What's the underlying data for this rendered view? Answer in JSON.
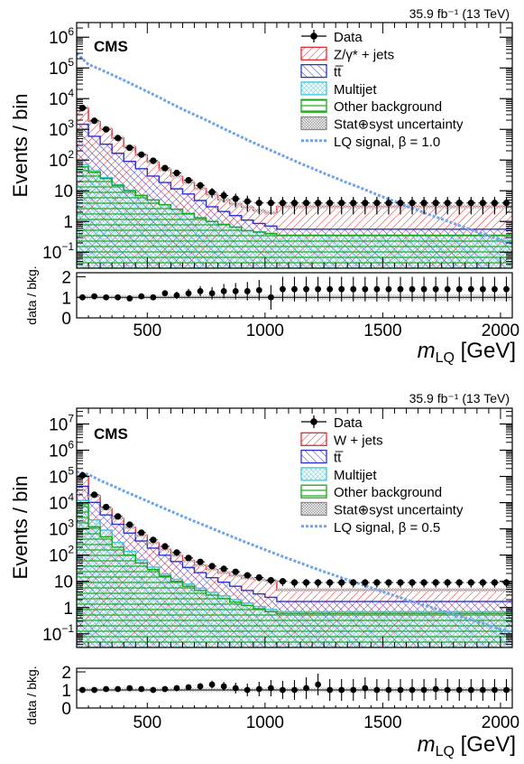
{
  "chart_data": [
    {
      "type": "histogram",
      "lumi_label": "35.9 fb⁻¹ (13 TeV)",
      "experiment_label": "CMS",
      "ylabel": "Events / bin",
      "ratio_ylabel": "data / bkg.",
      "xlabel_main": "m",
      "xlabel_sub": "LQ",
      "xlabel_unit": " [GeV]",
      "xlim": [
        200,
        2050
      ],
      "ylim_log": [
        0.03,
        3000000
      ],
      "y_ticks": [
        {
          "v": 0.1,
          "m": "10",
          "e": "−1"
        },
        {
          "v": 1,
          "m": "1",
          "e": ""
        },
        {
          "v": 10,
          "m": "10",
          "e": ""
        },
        {
          "v": 100,
          "m": "10",
          "e": "2"
        },
        {
          "v": 1000,
          "m": "10",
          "e": "3"
        },
        {
          "v": 10000,
          "m": "10",
          "e": "4"
        },
        {
          "v": 100000,
          "m": "10",
          "e": "5"
        },
        {
          "v": 1000000,
          "m": "10",
          "e": "6"
        }
      ],
      "x_tick_labels": [
        "500",
        "1000",
        "1500",
        "2000"
      ],
      "ratio_ylim": [
        0,
        2.2
      ],
      "ratio_tick_labels": [
        "0",
        "1",
        "2"
      ],
      "legend": [
        "Data",
        "Z/γ* + jets",
        "tt̅",
        "Multijet",
        "Other background",
        "Stat⊕syst uncertainty",
        "LQ signal, β = 1.0"
      ],
      "bin_edges": [
        200,
        250,
        300,
        350,
        400,
        450,
        500,
        550,
        600,
        650,
        700,
        750,
        800,
        850,
        900,
        950,
        1000,
        1050,
        2050
      ],
      "series": {
        "other": [
          60,
          40,
          25,
          15,
          10,
          7,
          5,
          3.5,
          2.5,
          1.8,
          1.3,
          1.0,
          0.8,
          0.65,
          0.5,
          0.45,
          0.4,
          0.35
        ],
        "multijet": [
          12,
          5,
          2,
          0.8,
          0.3,
          0.12,
          0.06,
          0.04,
          0.03,
          0.02,
          0.02,
          0.01,
          0.01,
          0.01,
          0.01,
          0.01,
          0.01,
          0.01
        ],
        "ttbar": [
          1400,
          550,
          300,
          150,
          80,
          45,
          25,
          15,
          9,
          6,
          3.5,
          2,
          1.3,
          0.9,
          0.6,
          0.4,
          0.3,
          0.2
        ],
        "zjets": [
          3500,
          1200,
          700,
          350,
          180,
          95,
          55,
          30,
          18,
          11,
          7,
          4.5,
          3,
          2.2,
          1.8,
          1.4,
          1.2,
          2.5
        ]
      },
      "data_x": [
        225,
        275,
        325,
        375,
        425,
        475,
        525,
        575,
        625,
        675,
        725,
        775,
        825,
        875,
        925,
        975,
        1025,
        1075,
        1125,
        1175,
        1225,
        1275,
        1325,
        1375,
        1425,
        1475,
        1525,
        1575,
        1625,
        1675,
        1725,
        1775,
        1825,
        1875,
        1925,
        1975,
        2025
      ],
      "data_y": [
        5000,
        1900,
        1000,
        520,
        250,
        150,
        95,
        55,
        38,
        22,
        15,
        9,
        7,
        5.5,
        4.5,
        4,
        4,
        4,
        4,
        4,
        4,
        4,
        4,
        4,
        4,
        4,
        4,
        4,
        4,
        4,
        4,
        4,
        4,
        4,
        4,
        4,
        4
      ],
      "signal_x": [
        200,
        250,
        300,
        350,
        400,
        450,
        500,
        550,
        600,
        650,
        700,
        750,
        800,
        850,
        900,
        950,
        1000,
        1050,
        1100,
        1150,
        1200,
        1250,
        1300,
        1350,
        1400,
        1450,
        1500,
        1550,
        1600,
        1650,
        1700,
        1750,
        1800,
        1850,
        1900,
        1950,
        2000,
        2050
      ],
      "signal_y": [
        300000,
        130000,
        90000,
        60000,
        40000,
        26000,
        17000,
        11000,
        7000,
        4500,
        3000,
        2000,
        1300,
        850,
        560,
        370,
        250,
        170,
        115,
        78,
        54,
        37,
        26,
        18,
        13,
        9,
        6.3,
        4.5,
        3.2,
        2.3,
        1.65,
        1.2,
        0.87,
        0.63,
        0.46,
        0.34,
        0.25,
        0.19
      ],
      "ratio_y": [
        1.0,
        1.05,
        1.0,
        1.0,
        0.95,
        1.05,
        1.0,
        1.2,
        1.1,
        1.2,
        1.3,
        1.2,
        1.3,
        1.3,
        1.3,
        1.35,
        1.0,
        1.4,
        1.4,
        1.4,
        1.4,
        1.4,
        1.4,
        1.4,
        1.4,
        1.4,
        1.4,
        1.4,
        1.4,
        1.4,
        1.4,
        1.4,
        1.4,
        1.4,
        1.4,
        1.4,
        1.4
      ],
      "ratio_err": [
        0.05,
        0.06,
        0.06,
        0.07,
        0.08,
        0.09,
        0.1,
        0.15,
        0.18,
        0.22,
        0.25,
        0.3,
        0.35,
        0.4,
        0.45,
        0.5,
        0.6,
        0.6,
        0.6,
        0.6,
        0.6,
        0.6,
        0.6,
        0.6,
        0.6,
        0.6,
        0.6,
        0.6,
        0.6,
        0.6,
        0.6,
        0.6,
        0.6,
        0.6,
        0.6,
        0.6,
        0.6
      ]
    },
    {
      "type": "histogram",
      "lumi_label": "35.9 fb⁻¹ (13 TeV)",
      "experiment_label": "CMS",
      "ylabel": "Events / bin",
      "ratio_ylabel": "data / bkg.",
      "xlabel_main": "m",
      "xlabel_sub": "LQ",
      "xlabel_unit": " [GeV]",
      "xlim": [
        200,
        2050
      ],
      "ylim_log": [
        0.03,
        40000000
      ],
      "y_ticks": [
        {
          "v": 0.1,
          "m": "10",
          "e": "−1"
        },
        {
          "v": 1,
          "m": "1",
          "e": ""
        },
        {
          "v": 10,
          "m": "10",
          "e": ""
        },
        {
          "v": 100,
          "m": "10",
          "e": "2"
        },
        {
          "v": 1000,
          "m": "10",
          "e": "3"
        },
        {
          "v": 10000,
          "m": "10",
          "e": "4"
        },
        {
          "v": 100000,
          "m": "10",
          "e": "5"
        },
        {
          "v": 1000000,
          "m": "10",
          "e": "6"
        },
        {
          "v": 10000000,
          "m": "10",
          "e": "7"
        }
      ],
      "x_tick_labels": [
        "500",
        "1000",
        "1500",
        "2000"
      ],
      "ratio_ylim": [
        0,
        2.2
      ],
      "ratio_tick_labels": [
        "0",
        "1",
        "2"
      ],
      "legend": [
        "Data",
        "W + jets",
        "tt̅",
        "Multijet",
        "Other background",
        "Stat⊕syst uncertainty",
        "LQ signal, β = 0.5"
      ],
      "bin_edges": [
        200,
        250,
        300,
        350,
        400,
        450,
        500,
        550,
        600,
        650,
        700,
        750,
        800,
        850,
        900,
        950,
        1000,
        1050,
        2050
      ],
      "series": {
        "other": [
          9000,
          1200,
          500,
          200,
          100,
          50,
          28,
          16,
          10,
          6.5,
          4.5,
          3,
          2.2,
          1.6,
          1.2,
          0.9,
          0.7,
          0.6
        ],
        "multijet": [
          3000,
          1000,
          400,
          100,
          40,
          15,
          7,
          3,
          2,
          1.3,
          1,
          0.8,
          0.6,
          0.4,
          0.3,
          0.2,
          0.15,
          0.1
        ],
        "ttbar": [
          30000,
          8000,
          2500,
          1200,
          550,
          280,
          150,
          80,
          45,
          26,
          16,
          10,
          6.5,
          4.5,
          3,
          2.2,
          1.6,
          1.0
        ],
        "wjets": [
          60000,
          8000,
          2500,
          1000,
          450,
          220,
          110,
          65,
          40,
          28,
          20,
          15,
          12,
          10,
          9,
          8.5,
          8,
          3
        ]
      },
      "data_x": [
        225,
        275,
        325,
        375,
        425,
        475,
        525,
        575,
        625,
        675,
        725,
        775,
        825,
        875,
        925,
        975,
        1025,
        1075,
        1125,
        1175,
        1225,
        1275,
        1325,
        1375,
        1425,
        1475,
        1525,
        1575,
        1625,
        1675,
        1725,
        1775,
        1825,
        1875,
        1925,
        1975,
        2025
      ],
      "data_y": [
        110000,
        20000,
        6800,
        3000,
        1450,
        720,
        380,
        215,
        125,
        78,
        55,
        38,
        30,
        23,
        17,
        14,
        11,
        10,
        9,
        9,
        9,
        9,
        9,
        9,
        9,
        9,
        9,
        9,
        9,
        9,
        9,
        9,
        9,
        9,
        9,
        9,
        9
      ],
      "signal_x": [
        200,
        250,
        300,
        350,
        400,
        450,
        500,
        550,
        600,
        650,
        700,
        750,
        800,
        850,
        900,
        950,
        1000,
        1050,
        1100,
        1150,
        1200,
        1250,
        1300,
        1350,
        1400,
        1450,
        1500,
        1550,
        1600,
        1650,
        1700,
        1750,
        1800,
        1850,
        1900,
        1950,
        2000,
        2050
      ],
      "signal_y": [
        150000,
        120000,
        70000,
        45000,
        28000,
        18000,
        11500,
        7300,
        4700,
        3000,
        1950,
        1280,
        840,
        550,
        360,
        240,
        160,
        108,
        73,
        50,
        34,
        23.5,
        16.5,
        11.5,
        8.1,
        5.7,
        4.0,
        2.85,
        2.0,
        1.45,
        1.05,
        0.76,
        0.55,
        0.4,
        0.29,
        0.21,
        0.15,
        0.11
      ],
      "ratio_y": [
        1.0,
        1.0,
        1.05,
        1.05,
        1.1,
        1.05,
        1.0,
        1.05,
        1.1,
        1.15,
        1.2,
        1.3,
        1.2,
        1.1,
        1.0,
        1.05,
        1.1,
        1.0,
        1.0,
        1.1,
        1.3,
        1.0,
        1.0,
        1.0,
        1.1,
        1.0,
        1.0,
        1.0,
        1.0,
        1.0,
        1.05,
        1.0,
        1.0,
        1.0,
        1.0,
        1.0,
        1.0
      ],
      "ratio_err": [
        0.02,
        0.03,
        0.04,
        0.05,
        0.06,
        0.07,
        0.08,
        0.1,
        0.12,
        0.15,
        0.18,
        0.22,
        0.25,
        0.3,
        0.35,
        0.4,
        0.45,
        0.5,
        0.55,
        0.6,
        0.6,
        0.6,
        0.6,
        0.6,
        0.6,
        0.6,
        0.6,
        0.6,
        0.6,
        0.6,
        0.6,
        0.6,
        0.6,
        0.6,
        0.6,
        0.6,
        0.6
      ]
    }
  ],
  "colors": {
    "zjets": "#e8252b",
    "wjets": "#e8252b",
    "ttbar": "#2a2fd6",
    "multijet": "#3fc7d6",
    "other": "#1aa81a",
    "signal": "#6fa3ef",
    "uncertainty": "#999999"
  }
}
